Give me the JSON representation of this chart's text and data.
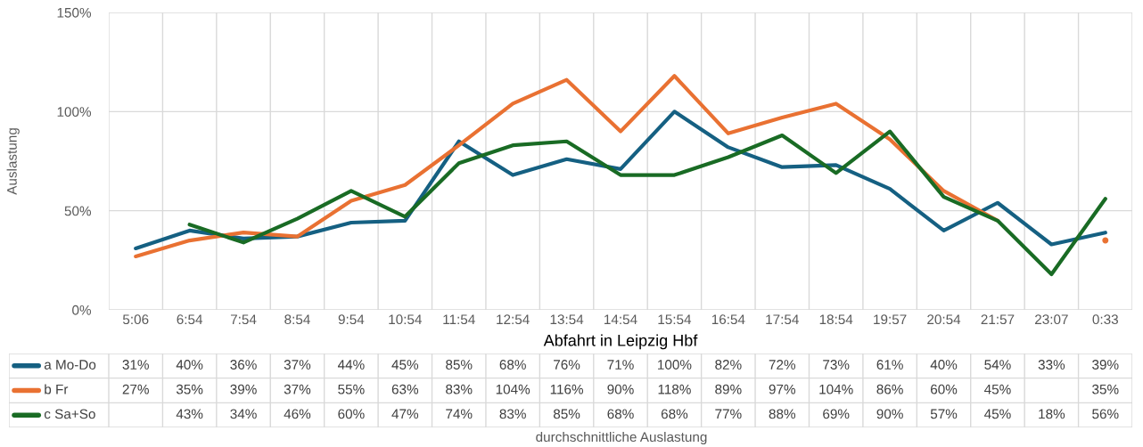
{
  "chart_data": {
    "type": "line",
    "categories": [
      "5:06",
      "6:54",
      "7:54",
      "8:54",
      "9:54",
      "10:54",
      "11:54",
      "12:54",
      "13:54",
      "14:54",
      "15:54",
      "16:54",
      "17:54",
      "18:54",
      "19:57",
      "20:54",
      "21:57",
      "23:07",
      "0:33"
    ],
    "series": [
      {
        "name": "a Mo-Do",
        "color": "#156082",
        "values": [
          31,
          40,
          36,
          37,
          44,
          45,
          85,
          68,
          76,
          71,
          100,
          82,
          72,
          73,
          61,
          40,
          54,
          33,
          39
        ],
        "value_labels": [
          "31%",
          "40%",
          "36%",
          "37%",
          "44%",
          "45%",
          "85%",
          "68%",
          "76%",
          "71%",
          "100%",
          "82%",
          "72%",
          "73%",
          "61%",
          "40%",
          "54%",
          "33%",
          "39%"
        ]
      },
      {
        "name": "b Fr",
        "color": "#E97132",
        "values": [
          27,
          35,
          39,
          37,
          55,
          63,
          83,
          104,
          116,
          90,
          118,
          89,
          97,
          104,
          86,
          60,
          45,
          null,
          35
        ],
        "value_labels": [
          "27%",
          "35%",
          "39%",
          "37%",
          "55%",
          "63%",
          "83%",
          "104%",
          "116%",
          "90%",
          "118%",
          "89%",
          "97%",
          "104%",
          "86%",
          "60%",
          "45%",
          null,
          "35%"
        ]
      },
      {
        "name": "c Sa+So",
        "color": "#196B24",
        "values": [
          null,
          43,
          34,
          46,
          60,
          47,
          74,
          83,
          85,
          68,
          68,
          77,
          88,
          69,
          90,
          57,
          45,
          18,
          56
        ],
        "value_labels": [
          null,
          "43%",
          "34%",
          "46%",
          "60%",
          "47%",
          "74%",
          "83%",
          "85%",
          "68%",
          "68%",
          "77%",
          "88%",
          "69%",
          "90%",
          "57%",
          "45%",
          "18%",
          "56%"
        ]
      }
    ],
    "ylim": [
      0,
      150
    ],
    "yticks": [
      {
        "value": 0,
        "label": "0%"
      },
      {
        "value": 50,
        "label": "50%"
      },
      {
        "value": 100,
        "label": "100%"
      },
      {
        "value": 150,
        "label": "150%"
      }
    ],
    "xlabel": "Abfahrt in Leipzig Hbf",
    "ylabel": "Auslastung",
    "annotations": [
      "durchschnittliche Auslastung"
    ],
    "grid": true,
    "legend": "bottom",
    "marker": "none",
    "line_style": "solid"
  }
}
